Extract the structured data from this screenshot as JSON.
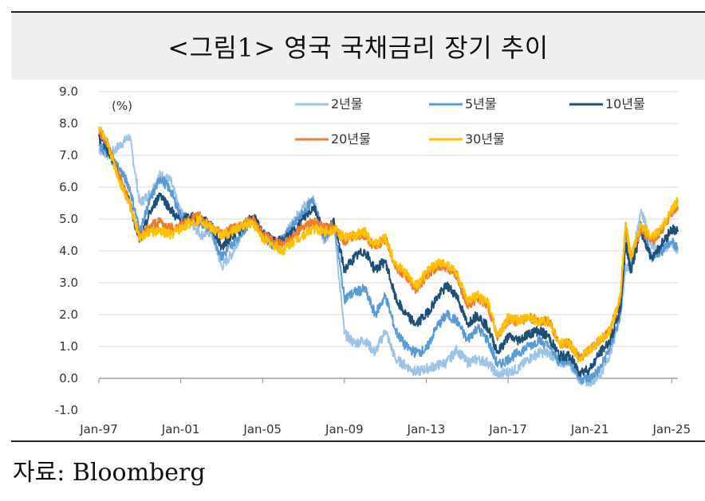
{
  "header": {
    "title": "<그림1> 영국 국채금리 장기 추이"
  },
  "footer": {
    "source": "자료: Bloomberg"
  },
  "chart_data": {
    "type": "line",
    "unit_label": "(%)",
    "ylim": [
      -1.0,
      9.0
    ],
    "yticks": [
      "9.0",
      "8.0",
      "7.0",
      "6.0",
      "5.0",
      "4.0",
      "3.0",
      "2.0",
      "1.0",
      "0.0",
      "-1.0"
    ],
    "xlim": [
      1997.0,
      2025.3
    ],
    "xticks": [
      {
        "label": "Jan-97",
        "x": 1997.0
      },
      {
        "label": "Jan-01",
        "x": 2001.0
      },
      {
        "label": "Jan-05",
        "x": 2005.0
      },
      {
        "label": "Jan-09",
        "x": 2009.0
      },
      {
        "label": "Jan-13",
        "x": 2013.0
      },
      {
        "label": "Jan-17",
        "x": 2017.0
      },
      {
        "label": "Jan-21",
        "x": 2021.0
      },
      {
        "label": "Jan-25",
        "x": 2025.0
      }
    ],
    "grid": true,
    "legend_position": "top",
    "series": [
      {
        "name": "2년물",
        "color": "#9dc3e6",
        "points": [
          [
            1997.0,
            7.2
          ],
          [
            1997.5,
            7.0
          ],
          [
            1998.0,
            7.3
          ],
          [
            1998.5,
            7.6
          ],
          [
            1999.0,
            5.5
          ],
          [
            1999.5,
            5.8
          ],
          [
            2000.0,
            6.4
          ],
          [
            2000.5,
            6.2
          ],
          [
            2001.0,
            5.2
          ],
          [
            2001.5,
            4.9
          ],
          [
            2002.0,
            4.5
          ],
          [
            2002.5,
            4.6
          ],
          [
            2003.0,
            3.5
          ],
          [
            2003.5,
            3.9
          ],
          [
            2004.0,
            4.6
          ],
          [
            2004.5,
            5.0
          ],
          [
            2005.0,
            4.5
          ],
          [
            2005.5,
            4.2
          ],
          [
            2006.0,
            4.4
          ],
          [
            2006.5,
            4.9
          ],
          [
            2007.0,
            5.4
          ],
          [
            2007.5,
            5.6
          ],
          [
            2008.0,
            4.3
          ],
          [
            2008.5,
            4.8
          ],
          [
            2009.0,
            1.4
          ],
          [
            2009.5,
            1.1
          ],
          [
            2010.0,
            1.2
          ],
          [
            2010.5,
            0.8
          ],
          [
            2011.0,
            1.5
          ],
          [
            2011.5,
            0.6
          ],
          [
            2012.0,
            0.4
          ],
          [
            2012.5,
            0.2
          ],
          [
            2013.0,
            0.3
          ],
          [
            2013.5,
            0.4
          ],
          [
            2014.0,
            0.5
          ],
          [
            2014.5,
            0.9
          ],
          [
            2015.0,
            0.5
          ],
          [
            2015.5,
            0.6
          ],
          [
            2016.0,
            0.5
          ],
          [
            2016.5,
            0.1
          ],
          [
            2017.0,
            0.2
          ],
          [
            2017.5,
            0.3
          ],
          [
            2018.0,
            0.6
          ],
          [
            2018.5,
            0.8
          ],
          [
            2019.0,
            0.8
          ],
          [
            2019.5,
            0.5
          ],
          [
            2020.0,
            0.5
          ],
          [
            2020.5,
            -0.05
          ],
          [
            2021.0,
            -0.1
          ],
          [
            2021.5,
            0.1
          ],
          [
            2022.0,
            0.8
          ],
          [
            2022.5,
            2.0
          ],
          [
            2022.75,
            3.5
          ],
          [
            2023.0,
            3.5
          ],
          [
            2023.5,
            5.3
          ],
          [
            2024.0,
            4.2
          ],
          [
            2024.5,
            4.0
          ],
          [
            2025.0,
            4.3
          ],
          [
            2025.3,
            4.0
          ]
        ]
      },
      {
        "name": "5년물",
        "color": "#5b9bd5",
        "points": [
          [
            1997.0,
            7.3
          ],
          [
            1997.5,
            7.0
          ],
          [
            1998.0,
            6.6
          ],
          [
            1998.5,
            6.0
          ],
          [
            1999.0,
            4.6
          ],
          [
            1999.5,
            5.6
          ],
          [
            2000.0,
            6.3
          ],
          [
            2000.5,
            5.9
          ],
          [
            2001.0,
            5.1
          ],
          [
            2001.5,
            5.0
          ],
          [
            2002.0,
            4.9
          ],
          [
            2002.5,
            4.6
          ],
          [
            2003.0,
            3.8
          ],
          [
            2003.5,
            4.2
          ],
          [
            2004.0,
            4.6
          ],
          [
            2004.5,
            5.0
          ],
          [
            2005.0,
            4.5
          ],
          [
            2005.5,
            4.2
          ],
          [
            2006.0,
            4.4
          ],
          [
            2006.5,
            4.8
          ],
          [
            2007.0,
            5.2
          ],
          [
            2007.5,
            5.6
          ],
          [
            2008.0,
            4.4
          ],
          [
            2008.5,
            4.9
          ],
          [
            2009.0,
            2.5
          ],
          [
            2009.5,
            2.7
          ],
          [
            2010.0,
            2.8
          ],
          [
            2010.5,
            2.0
          ],
          [
            2011.0,
            2.6
          ],
          [
            2011.5,
            1.5
          ],
          [
            2012.0,
            1.0
          ],
          [
            2012.5,
            0.8
          ],
          [
            2013.0,
            0.9
          ],
          [
            2013.5,
            1.6
          ],
          [
            2014.0,
            2.0
          ],
          [
            2014.5,
            1.8
          ],
          [
            2015.0,
            1.2
          ],
          [
            2015.5,
            1.6
          ],
          [
            2016.0,
            1.2
          ],
          [
            2016.5,
            0.4
          ],
          [
            2017.0,
            0.6
          ],
          [
            2017.5,
            0.8
          ],
          [
            2018.0,
            1.0
          ],
          [
            2018.5,
            1.2
          ],
          [
            2019.0,
            1.0
          ],
          [
            2019.5,
            0.5
          ],
          [
            2020.0,
            0.6
          ],
          [
            2020.5,
            0.0
          ],
          [
            2021.0,
            0.0
          ],
          [
            2021.5,
            0.3
          ],
          [
            2022.0,
            1.0
          ],
          [
            2022.5,
            2.0
          ],
          [
            2022.75,
            4.5
          ],
          [
            2023.0,
            3.5
          ],
          [
            2023.5,
            4.9
          ],
          [
            2024.0,
            3.8
          ],
          [
            2024.5,
            4.0
          ],
          [
            2025.0,
            4.3
          ],
          [
            2025.3,
            4.1
          ]
        ]
      },
      {
        "name": "10년물",
        "color": "#1f4e79",
        "points": [
          [
            1997.0,
            7.6
          ],
          [
            1997.5,
            7.1
          ],
          [
            1998.0,
            6.3
          ],
          [
            1998.5,
            5.5
          ],
          [
            1999.0,
            4.3
          ],
          [
            1999.5,
            5.2
          ],
          [
            2000.0,
            5.8
          ],
          [
            2000.5,
            5.3
          ],
          [
            2001.0,
            4.9
          ],
          [
            2001.5,
            5.1
          ],
          [
            2002.0,
            5.0
          ],
          [
            2002.5,
            4.8
          ],
          [
            2003.0,
            4.1
          ],
          [
            2003.5,
            4.5
          ],
          [
            2004.0,
            4.7
          ],
          [
            2004.5,
            5.1
          ],
          [
            2005.0,
            4.6
          ],
          [
            2005.5,
            4.3
          ],
          [
            2006.0,
            4.3
          ],
          [
            2006.5,
            4.6
          ],
          [
            2007.0,
            5.0
          ],
          [
            2007.5,
            5.4
          ],
          [
            2008.0,
            4.6
          ],
          [
            2008.5,
            4.9
          ],
          [
            2009.0,
            3.4
          ],
          [
            2009.5,
            3.8
          ],
          [
            2010.0,
            4.0
          ],
          [
            2010.5,
            3.4
          ],
          [
            2011.0,
            3.7
          ],
          [
            2011.5,
            2.5
          ],
          [
            2012.0,
            2.0
          ],
          [
            2012.5,
            1.7
          ],
          [
            2013.0,
            2.0
          ],
          [
            2013.5,
            2.5
          ],
          [
            2014.0,
            2.9
          ],
          [
            2014.5,
            2.6
          ],
          [
            2015.0,
            1.7
          ],
          [
            2015.5,
            2.0
          ],
          [
            2016.0,
            1.6
          ],
          [
            2016.5,
            0.8
          ],
          [
            2017.0,
            1.3
          ],
          [
            2017.5,
            1.2
          ],
          [
            2018.0,
            1.4
          ],
          [
            2018.5,
            1.5
          ],
          [
            2019.0,
            1.3
          ],
          [
            2019.5,
            0.7
          ],
          [
            2020.0,
            0.7
          ],
          [
            2020.5,
            0.2
          ],
          [
            2021.0,
            0.3
          ],
          [
            2021.5,
            0.8
          ],
          [
            2022.0,
            1.2
          ],
          [
            2022.5,
            2.2
          ],
          [
            2022.75,
            4.2
          ],
          [
            2023.0,
            3.4
          ],
          [
            2023.5,
            4.6
          ],
          [
            2024.0,
            3.8
          ],
          [
            2024.5,
            4.2
          ],
          [
            2025.0,
            4.7
          ],
          [
            2025.3,
            4.6
          ]
        ]
      },
      {
        "name": "20년물",
        "color": "#ed7d31",
        "points": [
          [
            1997.0,
            7.8
          ],
          [
            1997.5,
            7.3
          ],
          [
            1998.0,
            6.3
          ],
          [
            1998.5,
            5.6
          ],
          [
            1999.0,
            4.4
          ],
          [
            1999.5,
            4.8
          ],
          [
            2000.0,
            4.9
          ],
          [
            2000.5,
            4.7
          ],
          [
            2001.0,
            4.8
          ],
          [
            2001.5,
            5.0
          ],
          [
            2002.0,
            5.1
          ],
          [
            2002.5,
            4.8
          ],
          [
            2003.0,
            4.5
          ],
          [
            2003.5,
            4.7
          ],
          [
            2004.0,
            4.8
          ],
          [
            2004.5,
            5.0
          ],
          [
            2005.0,
            4.5
          ],
          [
            2005.5,
            4.3
          ],
          [
            2006.0,
            4.2
          ],
          [
            2006.5,
            4.5
          ],
          [
            2007.0,
            4.8
          ],
          [
            2007.5,
            4.9
          ],
          [
            2008.0,
            4.7
          ],
          [
            2008.5,
            4.8
          ],
          [
            2009.0,
            4.3
          ],
          [
            2009.5,
            4.5
          ],
          [
            2010.0,
            4.5
          ],
          [
            2010.5,
            4.1
          ],
          [
            2011.0,
            4.4
          ],
          [
            2011.5,
            3.5
          ],
          [
            2012.0,
            3.2
          ],
          [
            2012.5,
            2.8
          ],
          [
            2013.0,
            3.2
          ],
          [
            2013.5,
            3.5
          ],
          [
            2014.0,
            3.5
          ],
          [
            2014.5,
            3.2
          ],
          [
            2015.0,
            2.3
          ],
          [
            2015.5,
            2.5
          ],
          [
            2016.0,
            2.3
          ],
          [
            2016.5,
            1.3
          ],
          [
            2017.0,
            1.8
          ],
          [
            2017.5,
            1.8
          ],
          [
            2018.0,
            1.9
          ],
          [
            2018.5,
            1.8
          ],
          [
            2019.0,
            1.8
          ],
          [
            2019.5,
            1.1
          ],
          [
            2020.0,
            1.1
          ],
          [
            2020.5,
            0.6
          ],
          [
            2021.0,
            0.9
          ],
          [
            2021.5,
            1.2
          ],
          [
            2022.0,
            1.5
          ],
          [
            2022.5,
            2.6
          ],
          [
            2022.75,
            4.8
          ],
          [
            2023.0,
            3.8
          ],
          [
            2023.5,
            4.7
          ],
          [
            2024.0,
            4.3
          ],
          [
            2024.5,
            4.6
          ],
          [
            2025.0,
            5.2
          ],
          [
            2025.3,
            5.4
          ]
        ]
      },
      {
        "name": "30년물",
        "color": "#ffc000",
        "points": [
          [
            1997.0,
            7.9
          ],
          [
            1997.5,
            7.2
          ],
          [
            1998.0,
            6.2
          ],
          [
            1998.5,
            5.5
          ],
          [
            1999.0,
            4.4
          ],
          [
            1999.5,
            4.6
          ],
          [
            2000.0,
            4.6
          ],
          [
            2000.5,
            4.5
          ],
          [
            2001.0,
            4.7
          ],
          [
            2001.5,
            4.9
          ],
          [
            2002.0,
            5.0
          ],
          [
            2002.5,
            4.7
          ],
          [
            2003.0,
            4.5
          ],
          [
            2003.5,
            4.6
          ],
          [
            2004.0,
            4.8
          ],
          [
            2004.5,
            4.9
          ],
          [
            2005.0,
            4.4
          ],
          [
            2005.5,
            4.2
          ],
          [
            2006.0,
            4.0
          ],
          [
            2006.5,
            4.3
          ],
          [
            2007.0,
            4.5
          ],
          [
            2007.5,
            4.7
          ],
          [
            2008.0,
            4.6
          ],
          [
            2008.5,
            4.7
          ],
          [
            2009.0,
            4.4
          ],
          [
            2009.5,
            4.5
          ],
          [
            2010.0,
            4.6
          ],
          [
            2010.5,
            4.2
          ],
          [
            2011.0,
            4.4
          ],
          [
            2011.5,
            3.6
          ],
          [
            2012.0,
            3.3
          ],
          [
            2012.5,
            2.9
          ],
          [
            2013.0,
            3.3
          ],
          [
            2013.5,
            3.6
          ],
          [
            2014.0,
            3.6
          ],
          [
            2014.5,
            3.3
          ],
          [
            2015.0,
            2.4
          ],
          [
            2015.5,
            2.6
          ],
          [
            2016.0,
            2.4
          ],
          [
            2016.5,
            1.3
          ],
          [
            2017.0,
            1.9
          ],
          [
            2017.5,
            1.8
          ],
          [
            2018.0,
            1.9
          ],
          [
            2018.5,
            1.8
          ],
          [
            2019.0,
            1.8
          ],
          [
            2019.5,
            1.1
          ],
          [
            2020.0,
            1.1
          ],
          [
            2020.5,
            0.6
          ],
          [
            2021.0,
            0.9
          ],
          [
            2021.5,
            1.2
          ],
          [
            2022.0,
            1.5
          ],
          [
            2022.5,
            2.6
          ],
          [
            2022.75,
            4.9
          ],
          [
            2023.0,
            3.8
          ],
          [
            2023.5,
            4.8
          ],
          [
            2024.0,
            4.4
          ],
          [
            2024.5,
            4.7
          ],
          [
            2025.0,
            5.3
          ],
          [
            2025.3,
            5.6
          ]
        ]
      }
    ]
  }
}
